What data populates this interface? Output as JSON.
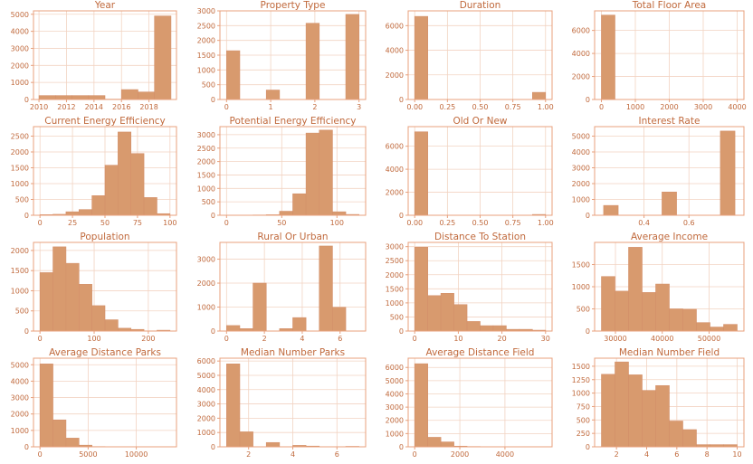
{
  "colors": {
    "bar": "#d89a6e",
    "text": "#c0693c",
    "frame": "#e8a07c",
    "grid": "#f2d3c2"
  },
  "chart_data": [
    {
      "type": "histogram",
      "title": "Year",
      "grid": true,
      "bins": [
        [
          2010,
          2011.2,
          230
        ],
        [
          2011.2,
          2012.4,
          230
        ],
        [
          2012.4,
          2013.6,
          230
        ],
        [
          2013.6,
          2014.8,
          230
        ],
        [
          2014.8,
          2016,
          20
        ],
        [
          2016,
          2017.2,
          580
        ],
        [
          2017.2,
          2018.4,
          440
        ],
        [
          2018.4,
          2019.6,
          4900
        ]
      ],
      "xlim": [
        2009.6,
        2020.0
      ],
      "ylim": [
        0,
        5200
      ],
      "xticks": [
        2010,
        2012,
        2014,
        2016,
        2018
      ],
      "xtick_labels": [
        "2010",
        "2012",
        "2014",
        "2016",
        "2018"
      ],
      "yticks": [
        0,
        1000,
        2000,
        3000,
        4000,
        5000
      ],
      "ytick_labels": [
        "0",
        "1000",
        "2000",
        "3000",
        "4000",
        "5000"
      ]
    },
    {
      "type": "histogram",
      "title": "Property Type",
      "grid": true,
      "bins": [
        [
          0,
          0.3,
          1650
        ],
        [
          0.3,
          0.6,
          0
        ],
        [
          0.6,
          0.9,
          0
        ],
        [
          0.9,
          1.2,
          320
        ],
        [
          1.2,
          1.5,
          0
        ],
        [
          1.5,
          1.8,
          0
        ],
        [
          1.8,
          2.1,
          2580
        ],
        [
          2.1,
          2.4,
          0
        ],
        [
          2.4,
          2.7,
          0
        ],
        [
          2.7,
          3.0,
          2880
        ]
      ],
      "xlim": [
        -0.15,
        3.15
      ],
      "ylim": [
        0,
        3000
      ],
      "xticks": [
        0,
        1,
        2,
        3
      ],
      "xtick_labels": [
        "0",
        "1",
        "2",
        "3"
      ],
      "yticks": [
        0,
        500,
        1000,
        1500,
        2000,
        2500,
        3000
      ],
      "ytick_labels": [
        "0",
        "500",
        "1000",
        "1500",
        "2000",
        "2500",
        "3000"
      ]
    },
    {
      "type": "histogram",
      "title": "Duration",
      "grid": true,
      "bins": [
        [
          0,
          0.1,
          6750
        ],
        [
          0.1,
          0.2,
          0
        ],
        [
          0.2,
          0.3,
          0
        ],
        [
          0.3,
          0.4,
          0
        ],
        [
          0.4,
          0.5,
          0
        ],
        [
          0.5,
          0.6,
          0
        ],
        [
          0.6,
          0.7,
          0
        ],
        [
          0.7,
          0.8,
          0
        ],
        [
          0.8,
          0.9,
          0
        ],
        [
          0.9,
          1.0,
          580
        ]
      ],
      "xlim": [
        -0.05,
        1.05
      ],
      "ylim": [
        0,
        7200
      ],
      "xticks": [
        0,
        0.25,
        0.5,
        0.75,
        1.0
      ],
      "xtick_labels": [
        "0.00",
        "0.25",
        "0.50",
        "0.75",
        "1.00"
      ],
      "yticks": [
        0,
        2000,
        4000,
        6000
      ],
      "ytick_labels": [
        "0",
        "2000",
        "4000",
        "6000"
      ]
    },
    {
      "type": "histogram",
      "title": "Total Floor Area",
      "grid": true,
      "bins": [
        [
          0,
          400,
          7330
        ],
        [
          400,
          800,
          5
        ],
        [
          800,
          1200,
          0
        ],
        [
          1200,
          1600,
          0
        ],
        [
          1600,
          2000,
          0
        ],
        [
          2000,
          2400,
          0
        ],
        [
          2400,
          2800,
          0
        ],
        [
          2800,
          3200,
          0
        ],
        [
          3200,
          3600,
          0
        ],
        [
          3600,
          4000,
          2
        ]
      ],
      "xlim": [
        -200,
        4200
      ],
      "ylim": [
        0,
        7700
      ],
      "xticks": [
        0,
        1000,
        2000,
        3000,
        4000
      ],
      "xtick_labels": [
        "0",
        "1000",
        "2000",
        "3000",
        "4000"
      ],
      "yticks": [
        0,
        2000,
        4000,
        6000
      ],
      "ytick_labels": [
        "0",
        "2000",
        "4000",
        "6000"
      ]
    },
    {
      "type": "histogram",
      "title": "Current Energy Efficiency",
      "grid": true,
      "bins": [
        [
          0,
          10,
          20
        ],
        [
          10,
          20,
          30
        ],
        [
          20,
          30,
          110
        ],
        [
          30,
          40,
          180
        ],
        [
          40,
          50,
          620
        ],
        [
          50,
          60,
          1580
        ],
        [
          60,
          70,
          2630
        ],
        [
          70,
          80,
          1950
        ],
        [
          80,
          90,
          560
        ],
        [
          90,
          100,
          50
        ]
      ],
      "xlim": [
        -5,
        105
      ],
      "ylim": [
        0,
        2800
      ],
      "xticks": [
        0,
        25,
        50,
        75,
        100
      ],
      "xtick_labels": [
        "0",
        "25",
        "50",
        "75",
        "100"
      ],
      "yticks": [
        0,
        500,
        1000,
        1500,
        2000,
        2500
      ],
      "ytick_labels": [
        "0",
        "500",
        "1000",
        "1500",
        "2000",
        "2500"
      ]
    },
    {
      "type": "histogram",
      "title": "Potential Energy Efficiency",
      "grid": true,
      "bins": [
        [
          0,
          12,
          5
        ],
        [
          12,
          24,
          5
        ],
        [
          24,
          36,
          10
        ],
        [
          36,
          48,
          20
        ],
        [
          48,
          60,
          150
        ],
        [
          60,
          72,
          800
        ],
        [
          72,
          84,
          3060
        ],
        [
          84,
          96,
          3170
        ],
        [
          96,
          108,
          130
        ],
        [
          108,
          120,
          30
        ]
      ],
      "xlim": [
        -6,
        126
      ],
      "ylim": [
        0,
        3300
      ],
      "xticks": [
        0,
        50,
        100
      ],
      "xtick_labels": [
        "0",
        "50",
        "100"
      ],
      "yticks": [
        0,
        500,
        1000,
        1500,
        2000,
        2500,
        3000
      ],
      "ytick_labels": [
        "0",
        "500",
        "1000",
        "1500",
        "2000",
        "2500",
        "3000"
      ]
    },
    {
      "type": "histogram",
      "title": "Old Or New",
      "grid": true,
      "bins": [
        [
          0,
          0.1,
          7250
        ],
        [
          0.1,
          0.2,
          0
        ],
        [
          0.2,
          0.3,
          0
        ],
        [
          0.3,
          0.4,
          0
        ],
        [
          0.4,
          0.5,
          0
        ],
        [
          0.5,
          0.6,
          0
        ],
        [
          0.6,
          0.7,
          0
        ],
        [
          0.7,
          0.8,
          0
        ],
        [
          0.8,
          0.9,
          0
        ],
        [
          0.9,
          1.0,
          70
        ]
      ],
      "xlim": [
        -0.05,
        1.05
      ],
      "ylim": [
        0,
        7700
      ],
      "xticks": [
        0,
        0.25,
        0.5,
        0.75,
        1.0
      ],
      "xtick_labels": [
        "0.00",
        "0.25",
        "0.50",
        "0.75",
        "1.00"
      ],
      "yticks": [
        0,
        2000,
        4000,
        6000
      ],
      "ytick_labels": [
        "0",
        "2000",
        "4000",
        "6000"
      ]
    },
    {
      "type": "histogram",
      "title": "Interest Rate",
      "grid": true,
      "bins": [
        [
          0.22,
          0.285,
          620
        ],
        [
          0.285,
          0.35,
          0
        ],
        [
          0.35,
          0.415,
          0
        ],
        [
          0.415,
          0.48,
          0
        ],
        [
          0.48,
          0.545,
          1470
        ],
        [
          0.545,
          0.61,
          0
        ],
        [
          0.61,
          0.675,
          0
        ],
        [
          0.675,
          0.74,
          0
        ],
        [
          0.74,
          0.805,
          5320
        ]
      ],
      "xlim": [
        0.18,
        0.845
      ],
      "ylim": [
        0,
        5600
      ],
      "xticks": [
        0.4,
        0.6
      ],
      "xtick_labels": [
        "0.4",
        "0.6"
      ],
      "yticks": [
        0,
        1000,
        2000,
        3000,
        4000,
        5000
      ],
      "ytick_labels": [
        "0",
        "1000",
        "2000",
        "3000",
        "4000",
        "5000"
      ]
    },
    {
      "type": "histogram",
      "title": "Population",
      "grid": true,
      "bins": [
        [
          0,
          24,
          1450
        ],
        [
          24,
          48,
          2090
        ],
        [
          48,
          72,
          1680
        ],
        [
          72,
          96,
          1160
        ],
        [
          96,
          120,
          630
        ],
        [
          120,
          144,
          280
        ],
        [
          144,
          168,
          70
        ],
        [
          168,
          192,
          40
        ],
        [
          192,
          216,
          5
        ],
        [
          216,
          240,
          20
        ]
      ],
      "xlim": [
        -12,
        252
      ],
      "ylim": [
        0,
        2200
      ],
      "xticks": [
        0,
        100,
        200
      ],
      "xtick_labels": [
        "0",
        "100",
        "200"
      ],
      "yticks": [
        0,
        500,
        1000,
        1500,
        2000
      ],
      "ytick_labels": [
        "0",
        "500",
        "1000",
        "1500",
        "2000"
      ]
    },
    {
      "type": "histogram",
      "title": "Rural Or Urban",
      "grid": true,
      "bins": [
        [
          0,
          0.7,
          230
        ],
        [
          0.7,
          1.4,
          100
        ],
        [
          1.4,
          2.1,
          2000
        ],
        [
          2.1,
          2.8,
          0
        ],
        [
          2.8,
          3.5,
          100
        ],
        [
          3.5,
          4.2,
          560
        ],
        [
          4.2,
          4.9,
          0
        ],
        [
          4.9,
          5.6,
          3550
        ],
        [
          5.6,
          6.3,
          990
        ],
        [
          6.3,
          7.0,
          0
        ]
      ],
      "xlim": [
        -0.35,
        7.35
      ],
      "ylim": [
        0,
        3700
      ],
      "xticks": [
        0,
        2,
        4,
        6
      ],
      "xtick_labels": [
        "0",
        "2",
        "4",
        "6"
      ],
      "yticks": [
        0,
        1000,
        2000,
        3000
      ],
      "ytick_labels": [
        "0",
        "1000",
        "2000",
        "3000"
      ]
    },
    {
      "type": "histogram",
      "title": "Distance To Station",
      "grid": true,
      "bins": [
        [
          0,
          3,
          2980
        ],
        [
          3,
          6,
          1260
        ],
        [
          6,
          9,
          1340
        ],
        [
          9,
          12,
          940
        ],
        [
          12,
          15,
          340
        ],
        [
          15,
          18,
          190
        ],
        [
          18,
          21,
          190
        ],
        [
          21,
          24,
          60
        ],
        [
          24,
          27,
          60
        ],
        [
          27,
          30,
          30
        ]
      ],
      "xlim": [
        -1.5,
        31.5
      ],
      "ylim": [
        0,
        3150
      ],
      "xticks": [
        0,
        10,
        20,
        30
      ],
      "xtick_labels": [
        "0",
        "10",
        "20",
        "30"
      ],
      "yticks": [
        0,
        500,
        1000,
        1500,
        2000,
        2500,
        3000
      ],
      "ytick_labels": [
        "0",
        "500",
        "1000",
        "1500",
        "2000",
        "2500",
        "3000"
      ]
    },
    {
      "type": "histogram",
      "title": "Average Income",
      "grid": true,
      "bins": [
        [
          27000,
          29900,
          1230
        ],
        [
          29900,
          32800,
          900
        ],
        [
          32800,
          35700,
          1890
        ],
        [
          35700,
          38600,
          870
        ],
        [
          38600,
          41500,
          1060
        ],
        [
          41500,
          44400,
          500
        ],
        [
          44400,
          47300,
          490
        ],
        [
          47300,
          50200,
          190
        ],
        [
          50200,
          53100,
          90
        ],
        [
          53100,
          56000,
          150
        ]
      ],
      "xlim": [
        25550,
        57450
      ],
      "ylim": [
        0,
        2000
      ],
      "xticks": [
        30000,
        40000,
        50000
      ],
      "xtick_labels": [
        "30000",
        "40000",
        "50000"
      ],
      "yticks": [
        0,
        500,
        1000,
        1500
      ],
      "ytick_labels": [
        "0",
        "500",
        "1000",
        "1500"
      ]
    },
    {
      "type": "histogram",
      "title": "Average Distance Parks",
      "grid": true,
      "bins": [
        [
          0,
          1350,
          5050
        ],
        [
          1350,
          2700,
          1640
        ],
        [
          2700,
          4050,
          530
        ],
        [
          4050,
          5400,
          100
        ],
        [
          5400,
          6750,
          15
        ],
        [
          6750,
          8100,
          5
        ],
        [
          8100,
          9450,
          5
        ],
        [
          9450,
          10800,
          5
        ],
        [
          10800,
          12150,
          5
        ],
        [
          12150,
          13500,
          5
        ]
      ],
      "xlim": [
        -675,
        14175
      ],
      "ylim": [
        0,
        5400
      ],
      "xticks": [
        0,
        5000,
        10000
      ],
      "xtick_labels": [
        "0",
        "5000",
        "10000"
      ],
      "yticks": [
        0,
        1000,
        2000,
        3000,
        4000,
        5000
      ],
      "ytick_labels": [
        "0",
        "1000",
        "2000",
        "3000",
        "4000",
        "5000"
      ]
    },
    {
      "type": "histogram",
      "title": "Median Number Parks",
      "grid": true,
      "bins": [
        [
          1,
          1.6,
          5800
        ],
        [
          1.6,
          2.2,
          1050
        ],
        [
          2.2,
          2.8,
          0
        ],
        [
          2.8,
          3.4,
          300
        ],
        [
          3.4,
          4.0,
          0
        ],
        [
          4.0,
          4.6,
          100
        ],
        [
          4.6,
          5.2,
          50
        ],
        [
          5.2,
          5.8,
          0
        ],
        [
          5.8,
          6.4,
          0
        ],
        [
          6.4,
          7.0,
          30
        ]
      ],
      "xlim": [
        0.7,
        7.3
      ],
      "ylim": [
        0,
        6200
      ],
      "xticks": [
        2,
        4,
        6
      ],
      "xtick_labels": [
        "2",
        "4",
        "6"
      ],
      "yticks": [
        0,
        1000,
        2000,
        3000,
        4000,
        5000,
        6000
      ],
      "ytick_labels": [
        "0",
        "1000",
        "2000",
        "3000",
        "4000",
        "5000",
        "6000"
      ]
    },
    {
      "type": "histogram",
      "title": "Average Distance Field",
      "grid": true,
      "bins": [
        [
          0,
          580,
          6280
        ],
        [
          580,
          1160,
          720
        ],
        [
          1160,
          1740,
          370
        ],
        [
          1740,
          2320,
          50
        ],
        [
          2320,
          2900,
          20
        ],
        [
          2900,
          3480,
          10
        ],
        [
          3480,
          4060,
          10
        ],
        [
          4060,
          4640,
          10
        ],
        [
          4640,
          5220,
          5
        ],
        [
          5220,
          5800,
          5
        ]
      ],
      "xlim": [
        -290,
        6090
      ],
      "ylim": [
        0,
        6700
      ],
      "xticks": [
        0,
        2000,
        4000
      ],
      "xtick_labels": [
        "0",
        "2000",
        "4000"
      ],
      "yticks": [
        0,
        1000,
        2000,
        3000,
        4000,
        5000,
        6000
      ],
      "ytick_labels": [
        "0",
        "1000",
        "2000",
        "3000",
        "4000",
        "5000",
        "6000"
      ]
    },
    {
      "type": "histogram",
      "title": "Median Number Field",
      "grid": true,
      "bins": [
        [
          1,
          1.9,
          1350
        ],
        [
          1.9,
          2.8,
          1580
        ],
        [
          2.8,
          3.7,
          1340
        ],
        [
          3.7,
          4.6,
          1050
        ],
        [
          4.6,
          5.5,
          1140
        ],
        [
          5.5,
          6.4,
          480
        ],
        [
          6.4,
          7.3,
          320
        ],
        [
          7.3,
          8.2,
          40
        ],
        [
          8.2,
          9.1,
          40
        ],
        [
          9.1,
          10.0,
          40
        ]
      ],
      "xlim": [
        0.55,
        10.45
      ],
      "ylim": [
        0,
        1650
      ],
      "xticks": [
        2,
        4,
        6,
        8,
        10
      ],
      "xtick_labels": [
        "2",
        "4",
        "6",
        "8",
        "10"
      ],
      "yticks": [
        0,
        250,
        500,
        750,
        1000,
        1250,
        1500
      ],
      "ytick_labels": [
        "0",
        "250",
        "500",
        "750",
        "1000",
        "1250",
        "1500"
      ]
    }
  ]
}
